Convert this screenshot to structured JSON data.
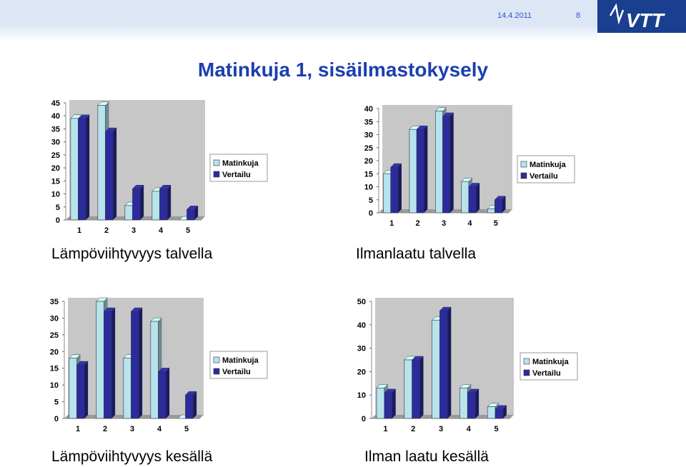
{
  "header": {
    "date": "14.4.2011",
    "page_number": "8",
    "logo_text": "VTT"
  },
  "title": "Matinkuja 1, sisäilmastokysely",
  "colors": {
    "matinkuja": "#b6e3ee",
    "vertailu": "#2b2b9e",
    "plot_bg": "#c7c7c7",
    "title": "#1b3fae",
    "logo_bg": "#1b3f8f"
  },
  "chart_data": [
    {
      "type": "bar",
      "caption": "Lämpöviihtyvyys talvella",
      "categories": [
        "1",
        "2",
        "3",
        "4",
        "5"
      ],
      "series": [
        {
          "name": "Matinkuja",
          "values": [
            39,
            44,
            5.5,
            11,
            0
          ]
        },
        {
          "name": "Vertailu",
          "values": [
            39,
            34,
            12,
            12,
            4
          ]
        }
      ],
      "ylim": [
        0,
        45
      ],
      "yticks": [
        0,
        5,
        10,
        15,
        20,
        25,
        30,
        35,
        40,
        45
      ],
      "legend": "right"
    },
    {
      "type": "bar",
      "caption": "Ilmanlaatu talvella",
      "categories": [
        "1",
        "2",
        "3",
        "4",
        "5"
      ],
      "series": [
        {
          "name": "Matinkuja",
          "values": [
            15,
            32,
            39,
            12,
            1.5
          ]
        },
        {
          "name": "Vertailu",
          "values": [
            17.5,
            32,
            37,
            10,
            5
          ]
        }
      ],
      "ylim": [
        0,
        40
      ],
      "yticks": [
        0,
        5,
        10,
        15,
        20,
        25,
        30,
        35,
        40
      ],
      "legend": "right"
    },
    {
      "type": "bar",
      "caption": "Lämpöviihtyvyys kesällä",
      "categories": [
        "1",
        "2",
        "3",
        "4",
        "5"
      ],
      "series": [
        {
          "name": "Matinkuja",
          "values": [
            18,
            35,
            18,
            29,
            0
          ]
        },
        {
          "name": "Vertailu",
          "values": [
            16,
            32,
            32,
            14,
            7
          ]
        }
      ],
      "ylim": [
        0,
        35
      ],
      "yticks": [
        0,
        5,
        10,
        15,
        20,
        25,
        30,
        35
      ],
      "legend": "right"
    },
    {
      "type": "bar",
      "caption": "Ilman laatu kesällä",
      "categories": [
        "1",
        "2",
        "3",
        "4",
        "5"
      ],
      "series": [
        {
          "name": "Matinkuja",
          "values": [
            13,
            25,
            42,
            13,
            5
          ]
        },
        {
          "name": "Vertailu",
          "values": [
            11,
            25,
            46,
            11,
            4
          ]
        }
      ],
      "ylim": [
        0,
        50
      ],
      "yticks": [
        0,
        10,
        20,
        30,
        40,
        50
      ],
      "legend": "right"
    }
  ]
}
